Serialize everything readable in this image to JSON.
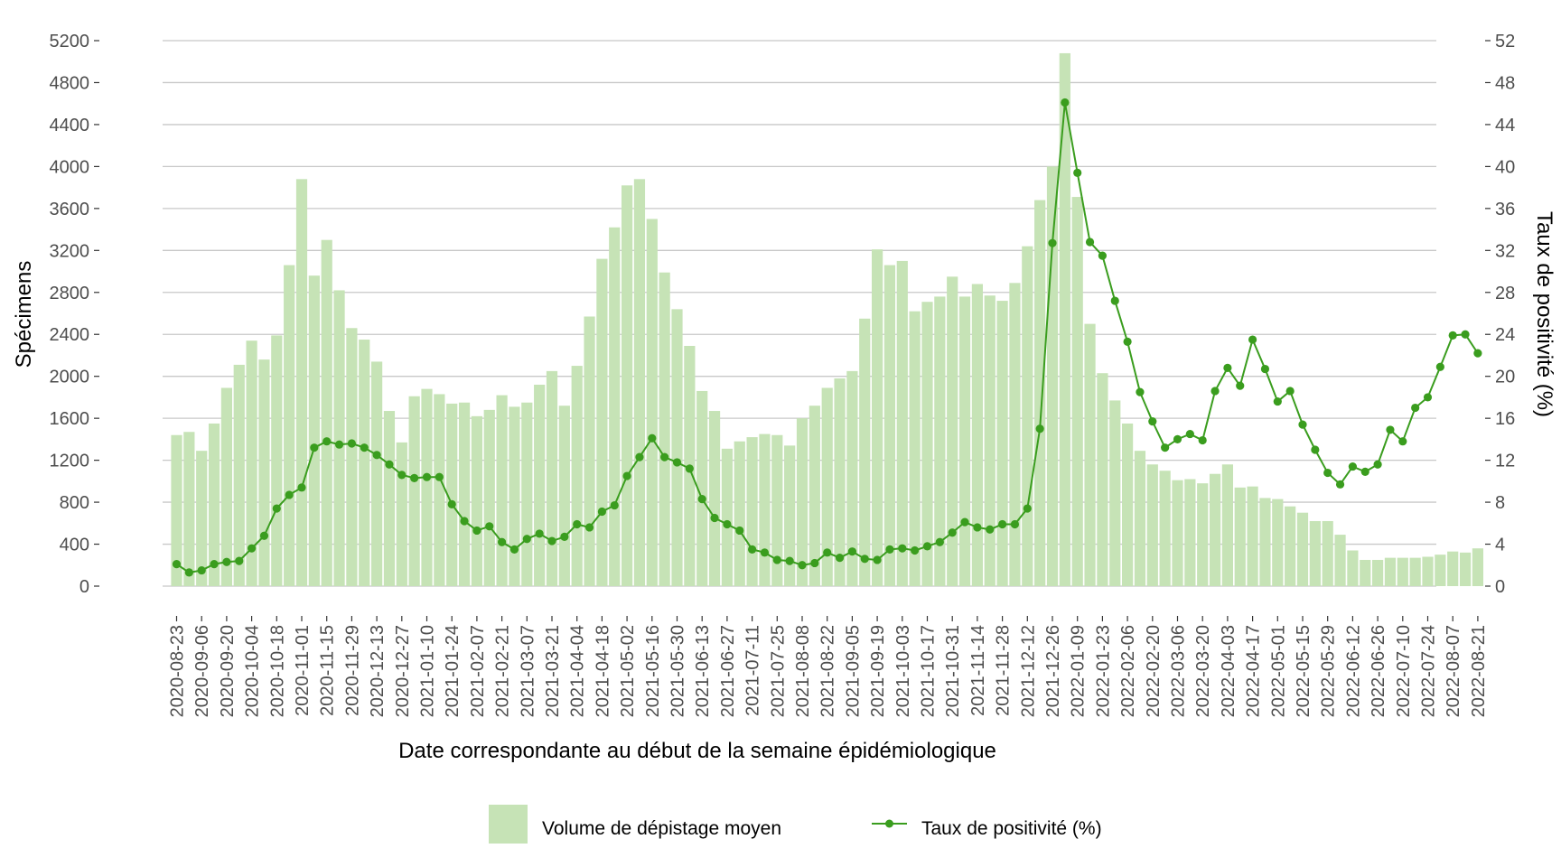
{
  "chart_data": {
    "type": "bar+line",
    "title": "",
    "xlabel": "Date correspondante au début de la semaine épidémiologique",
    "ylabel": "Spécimens",
    "y2label": "Taux de positivité (%)",
    "ylim": [
      0,
      5200
    ],
    "y2lim": [
      0,
      52
    ],
    "yticks": [
      0,
      400,
      800,
      1200,
      1600,
      2000,
      2400,
      2800,
      3200,
      3600,
      4000,
      4400,
      4800,
      5200
    ],
    "y2ticks": [
      0,
      4,
      8,
      12,
      16,
      20,
      24,
      28,
      32,
      36,
      40,
      44,
      48,
      52
    ],
    "grid": true,
    "legend_position": "bottom",
    "bar_color": "#c6e3b6",
    "line_color": "#3a9d1e",
    "x": [
      "2020-08-23",
      "2020-08-30",
      "2020-09-06",
      "2020-09-13",
      "2020-09-20",
      "2020-09-27",
      "2020-10-04",
      "2020-10-11",
      "2020-10-18",
      "2020-10-25",
      "2020-11-01",
      "2020-11-08",
      "2020-11-15",
      "2020-11-22",
      "2020-11-29",
      "2020-12-06",
      "2020-12-13",
      "2020-12-20",
      "2020-12-27",
      "2021-01-03",
      "2021-01-10",
      "2021-01-17",
      "2021-01-24",
      "2021-01-31",
      "2021-02-07",
      "2021-02-14",
      "2021-02-21",
      "2021-02-28",
      "2021-03-07",
      "2021-03-14",
      "2021-03-21",
      "2021-03-28",
      "2021-04-04",
      "2021-04-11",
      "2021-04-18",
      "2021-04-25",
      "2021-05-02",
      "2021-05-09",
      "2021-05-16",
      "2021-05-23",
      "2021-05-30",
      "2021-06-06",
      "2021-06-13",
      "2021-06-20",
      "2021-06-27",
      "2021-07-04",
      "2021-07-11",
      "2021-07-18",
      "2021-07-25",
      "2021-08-01",
      "2021-08-08",
      "2021-08-15",
      "2021-08-22",
      "2021-08-29",
      "2021-09-05",
      "2021-09-12",
      "2021-09-19",
      "2021-09-26",
      "2021-10-03",
      "2021-10-10",
      "2021-10-17",
      "2021-10-24",
      "2021-10-31",
      "2021-11-07",
      "2021-11-14",
      "2021-11-21",
      "2021-11-28",
      "2021-12-05",
      "2021-12-12",
      "2021-12-19",
      "2021-12-26",
      "2022-01-02",
      "2022-01-09",
      "2022-01-16",
      "2022-01-23",
      "2022-01-30",
      "2022-02-06",
      "2022-02-13",
      "2022-02-20",
      "2022-02-27",
      "2022-03-06",
      "2022-03-13",
      "2022-03-20",
      "2022-03-27",
      "2022-04-03",
      "2022-04-10",
      "2022-04-17",
      "2022-04-24",
      "2022-05-01",
      "2022-05-08",
      "2022-05-15",
      "2022-05-22",
      "2022-05-29",
      "2022-06-05",
      "2022-06-12",
      "2022-06-19",
      "2022-06-26",
      "2022-07-03",
      "2022-07-10",
      "2022-07-17",
      "2022-07-24",
      "2022-07-31",
      "2022-08-07",
      "2022-08-14",
      "2022-08-21"
    ],
    "series": [
      {
        "name": "Volume de dépistage moyen",
        "kind": "bar",
        "values": [
          1440,
          1470,
          1290,
          1550,
          1890,
          2110,
          2340,
          2160,
          2390,
          3060,
          3880,
          2960,
          3300,
          2820,
          2460,
          2350,
          2140,
          1670,
          1370,
          1810,
          1880,
          1830,
          1740,
          1750,
          1620,
          1680,
          1820,
          1710,
          1750,
          1920,
          2050,
          1720,
          2100,
          2570,
          3120,
          3420,
          3820,
          3880,
          3500,
          2990,
          2640,
          2290,
          1860,
          1670,
          1310,
          1380,
          1420,
          1450,
          1440,
          1340,
          1600,
          1720,
          1890,
          1980,
          2050,
          2550,
          3210,
          3060,
          3100,
          2620,
          2710,
          2760,
          2950,
          2760,
          2880,
          2770,
          2720,
          2890,
          3240,
          3680,
          4000,
          5080,
          3710,
          2500,
          2030,
          1770,
          1550,
          1290,
          1160,
          1100,
          1010,
          1020,
          980,
          1070,
          1160,
          940,
          950,
          840,
          830,
          760,
          700,
          620,
          620,
          490,
          340,
          250,
          250,
          270,
          270,
          270,
          280,
          300,
          330,
          320,
          360
        ]
      },
      {
        "name": "Taux de positivité (%)",
        "kind": "line",
        "values": [
          2.1,
          1.3,
          1.5,
          2.1,
          2.3,
          2.4,
          3.6,
          4.8,
          7.4,
          8.7,
          9.4,
          13.2,
          13.8,
          13.5,
          13.6,
          13.2,
          12.5,
          11.6,
          10.6,
          10.3,
          10.4,
          10.4,
          7.8,
          6.2,
          5.3,
          5.7,
          4.2,
          3.5,
          4.5,
          5.0,
          4.3,
          4.7,
          5.9,
          5.6,
          7.1,
          7.7,
          10.5,
          12.3,
          14.1,
          12.3,
          11.8,
          11.2,
          8.3,
          6.5,
          5.9,
          5.3,
          3.5,
          3.2,
          2.5,
          2.4,
          2.0,
          2.2,
          3.2,
          2.7,
          3.3,
          2.6,
          2.5,
          3.5,
          3.6,
          3.4,
          3.8,
          4.2,
          5.1,
          6.1,
          5.6,
          5.4,
          5.9,
          5.9,
          7.4,
          15.0,
          32.7,
          46.1,
          39.4,
          32.8,
          31.5,
          27.2,
          23.3,
          18.5,
          15.7,
          13.2,
          14.0,
          14.5,
          13.9,
          18.6,
          20.8,
          19.1,
          23.5,
          20.7,
          17.6,
          18.6,
          15.4,
          13.0,
          10.8,
          9.7,
          11.4,
          10.9,
          11.6,
          14.9,
          13.8,
          17.0,
          18.0,
          20.9,
          23.9,
          24.0,
          22.2
        ]
      }
    ],
    "tick_labels": [
      "2020-08-23",
      "2020-09-06",
      "2020-09-20",
      "2020-10-04",
      "2020-10-18",
      "2020-11-01",
      "2020-11-15",
      "2020-11-29",
      "2020-12-13",
      "2020-12-27",
      "2021-01-10",
      "2021-01-24",
      "2021-02-07",
      "2021-02-21",
      "2021-03-07",
      "2021-03-21",
      "2021-04-04",
      "2021-04-18",
      "2021-05-02",
      "2021-05-16",
      "2021-05-30",
      "2021-06-13",
      "2021-06-27",
      "2021-07-11",
      "2021-07-25",
      "2021-08-08",
      "2021-08-22",
      "2021-09-05",
      "2021-09-19",
      "2021-10-03",
      "2021-10-17",
      "2021-10-31",
      "2021-11-14",
      "2021-11-28",
      "2021-12-12",
      "2021-12-26",
      "2022-01-09",
      "2022-01-23",
      "2022-02-06",
      "2022-02-20",
      "2022-03-06",
      "2022-03-20",
      "2022-04-03",
      "2022-04-17",
      "2022-05-01",
      "2022-05-15",
      "2022-05-29",
      "2022-06-12",
      "2022-06-26",
      "2022-07-10",
      "2022-07-24",
      "2022-08-07",
      "2022-08-21"
    ]
  }
}
